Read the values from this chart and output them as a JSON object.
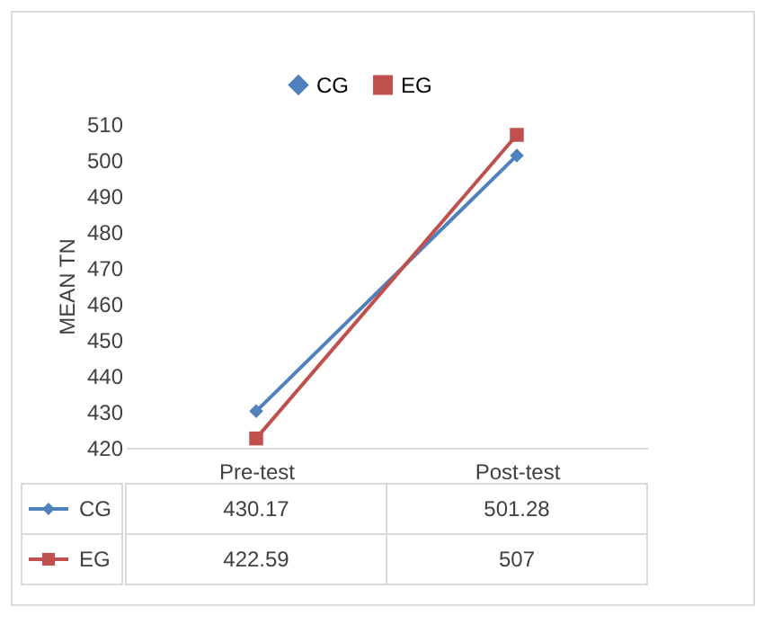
{
  "chart_data": {
    "type": "line",
    "ylabel": "MEAN TN",
    "categories": [
      "Pre-test",
      "Post-test"
    ],
    "series": [
      {
        "name": "CG",
        "color": "#4f81bd",
        "marker": "diamond",
        "values": [
          430.17,
          501.28
        ]
      },
      {
        "name": "EG",
        "color": "#c0504d",
        "marker": "square",
        "values": [
          422.59,
          507
        ]
      }
    ],
    "ylim": [
      420,
      510
    ],
    "yticks": [
      420,
      430,
      440,
      450,
      460,
      470,
      480,
      490,
      500,
      510
    ],
    "legend": "top",
    "data_labels": true
  }
}
